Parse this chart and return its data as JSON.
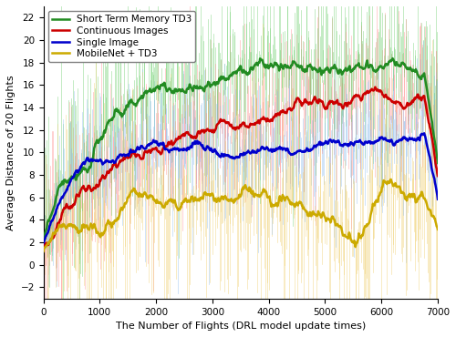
{
  "xlabel": "The Number of Flights (DRL model update times)",
  "ylabel": "Average Distance of 20 Flights",
  "xlim": [
    0,
    7000
  ],
  "ylim": [
    -3,
    23
  ],
  "yticks": [
    -2,
    0,
    2,
    4,
    6,
    8,
    10,
    12,
    14,
    16,
    18,
    20,
    22
  ],
  "xticks": [
    0,
    1000,
    2000,
    3000,
    4000,
    5000,
    6000,
    7000
  ],
  "legend_labels": [
    "Continuous Images",
    "Short Term Memory TD3",
    "Single Image",
    "MobileNet + TD3"
  ],
  "line_colors": [
    "#cc0000",
    "#228B22",
    "#0000cc",
    "#ccaa00"
  ],
  "fill_colors": [
    "#ff8888",
    "#66cc66",
    "#88bbee",
    "#eecc66"
  ],
  "seed": 123,
  "n_points": 700,
  "spike_scale": [
    4.0,
    5.0,
    3.5,
    5.5
  ]
}
